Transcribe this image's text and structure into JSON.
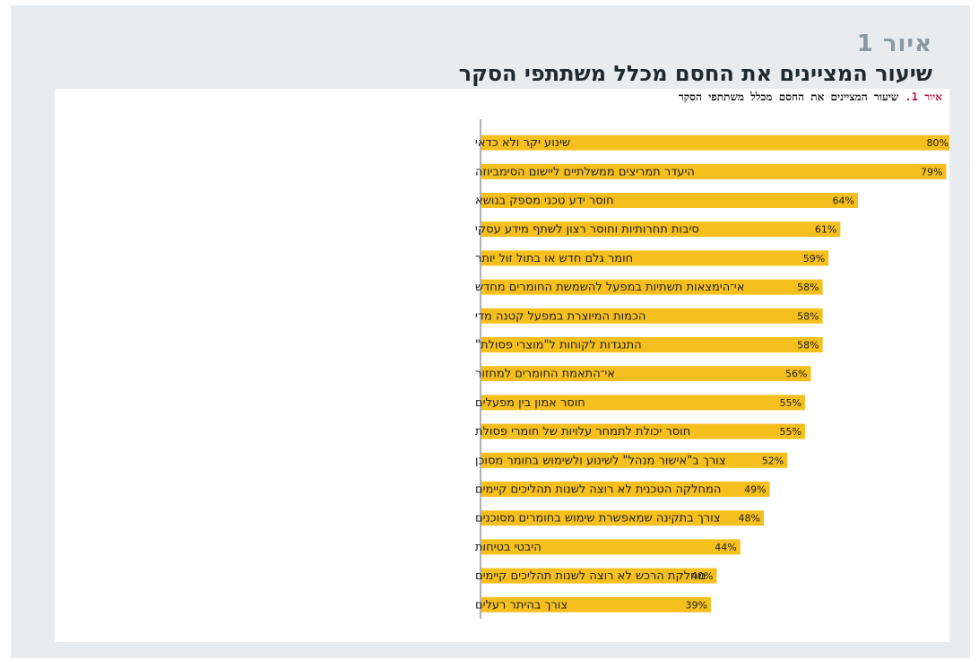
{
  "figure": {
    "number": "איור 1",
    "title": "שיעור המציינים את החסם מכלל משתתפי הסקר",
    "caption_label": "איור 1.",
    "caption_text": "שיעור המציינים את החסם מכלל משתתפי הסקר"
  },
  "colors": {
    "bar": "#f5bf1e",
    "axis": "#666666"
  },
  "chart_data": {
    "type": "bar",
    "orientation": "horizontal",
    "title": "שיעור המציינים את החסם מכלל משתתפי הסקר",
    "value_suffix": "%",
    "xlim": [
      0,
      80
    ],
    "grid": false,
    "categories": [
      "שינוע יקר ולא כדאי",
      "היעדר תמריצים ממשלתיים ליישום הסימביוזה",
      "חוסר ידע טכני מספק בנושא",
      "סיבות תחרותיות וחוסר רצון לשתף מידע עסקי",
      "חומר גלם חדש או בתול זול יותר",
      "אי־הימצאות תשתיות במפעל להשמשת החומרים מחדש",
      "הכמות המיוצרת במפעל קטנה מדי",
      "התנגדות לקוחות ל\"מוצרי פסולת\"",
      "אי־התאמת החומרים למחזור",
      "חוסר אמון בין מפעלים",
      "חוסר יכולת לתמחר עלויות של חומרי פסולת",
      "צורך ב\"אישור מנהל\" לשינוע ולשימוש בחומר מסוכן",
      "המחלקה הטכנית לא רוצה לשנות תהליכים קיימים",
      "צורך בתקינה שמאפשרת שימוש בחומרים מסוכנים",
      "היבטי בטיחות",
      "מחלקת הרכש לא רוצה לשנות תהליכים קיימים",
      "צורך בהיתר רעלים"
    ],
    "values": [
      80,
      79,
      64,
      61,
      59,
      58,
      58,
      58,
      56,
      55,
      55,
      52,
      49,
      48,
      44,
      40,
      39
    ]
  }
}
